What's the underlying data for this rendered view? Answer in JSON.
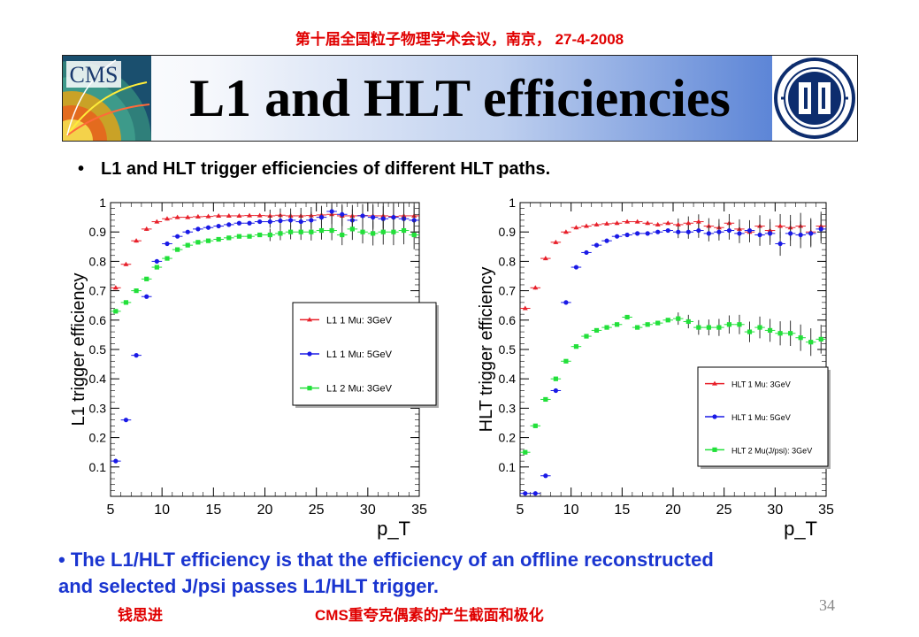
{
  "header": {
    "conference": "第十届全国粒子物理学术会议，南京， 27-4-2008"
  },
  "slide": {
    "title": "L1 and HLT efficiencies",
    "bullet1": "L1 and HLT trigger efficiencies of different HLT paths.",
    "bullet2_line1": "The L1/HLT efficiency is that the efficiency of an offline reconstructed",
    "bullet2_line2": "and selected J/psi passes L1/HLT trigger.",
    "cms_logo_text": "CMS",
    "page_number": "34"
  },
  "footer": {
    "author": "钱思进",
    "title": "CMS重夸克偶素的产生截面和极化"
  },
  "colors": {
    "red": "#e8202a",
    "blue": "#1a1ae6",
    "green": "#22e03a",
    "conference": "#e00000",
    "bullet2": "#1a35d0"
  },
  "chart_data": [
    {
      "type": "scatter",
      "ylabel": "L1 trigger efficiency",
      "xlabel": "p_T",
      "xlim": [
        5,
        35
      ],
      "ylim": [
        0,
        1
      ],
      "xticks": [
        5,
        10,
        15,
        20,
        25,
        30,
        35
      ],
      "yticks": [
        0.1,
        0.2,
        0.3,
        0.4,
        0.5,
        0.6,
        0.7,
        0.8,
        0.9,
        1
      ],
      "legend_position": "middle-right",
      "series": [
        {
          "name": "L1 1 Mu: 3GeV",
          "color": "red",
          "marker": "triangle",
          "x": [
            5.5,
            6.5,
            7.5,
            8.5,
            9.5,
            10.5,
            11.5,
            12.5,
            13.5,
            14.5,
            15.5,
            16.5,
            17.5,
            18.5,
            19.5,
            20.5,
            21.5,
            22.5,
            23.5,
            24.5,
            25.5,
            26.5,
            27.5,
            28.5,
            29.5,
            30.5,
            31.5,
            32.5,
            33.5,
            34.5
          ],
          "y": [
            0.71,
            0.79,
            0.87,
            0.91,
            0.935,
            0.945,
            0.95,
            0.95,
            0.952,
            0.953,
            0.955,
            0.955,
            0.955,
            0.956,
            0.956,
            0.955,
            0.957,
            0.955,
            0.955,
            0.956,
            0.958,
            0.96,
            0.955,
            0.955,
            0.956,
            0.955,
            0.955,
            0.953,
            0.955,
            0.955
          ]
        },
        {
          "name": "L1 1 Mu: 5GeV",
          "color": "blue",
          "marker": "circle",
          "x": [
            5.5,
            6.5,
            7.5,
            8.5,
            9.5,
            10.5,
            11.5,
            12.5,
            13.5,
            14.5,
            15.5,
            16.5,
            17.5,
            18.5,
            19.5,
            20.5,
            21.5,
            22.5,
            23.5,
            24.5,
            25.5,
            26.5,
            27.5,
            28.5,
            29.5,
            30.5,
            31.5,
            32.5,
            33.5,
            34.5
          ],
          "y": [
            0.12,
            0.26,
            0.48,
            0.68,
            0.8,
            0.86,
            0.885,
            0.9,
            0.91,
            0.915,
            0.92,
            0.925,
            0.93,
            0.93,
            0.935,
            0.935,
            0.938,
            0.94,
            0.935,
            0.94,
            0.95,
            0.97,
            0.96,
            0.94,
            0.955,
            0.95,
            0.945,
            0.95,
            0.945,
            0.94
          ]
        },
        {
          "name": "L1 2 Mu: 3GeV",
          "color": "green",
          "marker": "square",
          "x": [
            5.5,
            6.5,
            7.5,
            8.5,
            9.5,
            10.5,
            11.5,
            12.5,
            13.5,
            14.5,
            15.5,
            16.5,
            17.5,
            18.5,
            19.5,
            20.5,
            21.5,
            22.5,
            23.5,
            24.5,
            25.5,
            26.5,
            27.5,
            28.5,
            29.5,
            30.5,
            31.5,
            32.5,
            33.5,
            34.5
          ],
          "y": [
            0.63,
            0.66,
            0.7,
            0.74,
            0.78,
            0.81,
            0.84,
            0.855,
            0.865,
            0.87,
            0.875,
            0.88,
            0.885,
            0.885,
            0.89,
            0.89,
            0.895,
            0.9,
            0.9,
            0.9,
            0.905,
            0.905,
            0.89,
            0.91,
            0.9,
            0.895,
            0.9,
            0.9,
            0.905,
            0.89
          ]
        }
      ]
    },
    {
      "type": "scatter",
      "ylabel": "HLT trigger efficiency",
      "xlabel": "p_T",
      "xlim": [
        5,
        35
      ],
      "ylim": [
        0,
        1
      ],
      "xticks": [
        5,
        10,
        15,
        20,
        25,
        30,
        35
      ],
      "yticks": [
        0.1,
        0.2,
        0.3,
        0.4,
        0.5,
        0.6,
        0.7,
        0.8,
        0.9,
        1
      ],
      "legend_position": "lower-right",
      "series": [
        {
          "name": "HLT 1 Mu: 3GeV",
          "color": "red",
          "marker": "triangle",
          "x": [
            5.5,
            6.5,
            7.5,
            8.5,
            9.5,
            10.5,
            11.5,
            12.5,
            13.5,
            14.5,
            15.5,
            16.5,
            17.5,
            18.5,
            19.5,
            20.5,
            21.5,
            22.5,
            23.5,
            24.5,
            25.5,
            26.5,
            27.5,
            28.5,
            29.5,
            30.5,
            31.5,
            32.5,
            33.5,
            34.5
          ],
          "y": [
            0.64,
            0.71,
            0.81,
            0.865,
            0.9,
            0.915,
            0.92,
            0.925,
            0.928,
            0.93,
            0.935,
            0.935,
            0.93,
            0.925,
            0.93,
            0.925,
            0.93,
            0.935,
            0.92,
            0.915,
            0.93,
            0.91,
            0.9,
            0.92,
            0.905,
            0.92,
            0.915,
            0.92,
            0.9,
            0.92
          ]
        },
        {
          "name": "HLT 1 Mu: 5GeV",
          "color": "blue",
          "marker": "circle",
          "x": [
            5.5,
            6.5,
            7.5,
            8.5,
            9.5,
            10.5,
            11.5,
            12.5,
            13.5,
            14.5,
            15.5,
            16.5,
            17.5,
            18.5,
            19.5,
            20.5,
            21.5,
            22.5,
            23.5,
            24.5,
            25.5,
            26.5,
            27.5,
            28.5,
            29.5,
            30.5,
            31.5,
            32.5,
            33.5,
            34.5
          ],
          "y": [
            0.01,
            0.01,
            0.07,
            0.36,
            0.66,
            0.78,
            0.83,
            0.855,
            0.87,
            0.885,
            0.89,
            0.895,
            0.895,
            0.9,
            0.905,
            0.9,
            0.9,
            0.905,
            0.895,
            0.9,
            0.905,
            0.895,
            0.905,
            0.89,
            0.895,
            0.86,
            0.895,
            0.89,
            0.895,
            0.91
          ]
        },
        {
          "name": "HLT 2 Mu(J/psi): 3GeV",
          "color": "green",
          "marker": "square",
          "x": [
            5.5,
            6.5,
            7.5,
            8.5,
            9.5,
            10.5,
            11.5,
            12.5,
            13.5,
            14.5,
            15.5,
            16.5,
            17.5,
            18.5,
            19.5,
            20.5,
            21.5,
            22.5,
            23.5,
            24.5,
            25.5,
            26.5,
            27.5,
            28.5,
            29.5,
            30.5,
            31.5,
            32.5,
            33.5,
            34.5
          ],
          "y": [
            0.15,
            0.24,
            0.33,
            0.4,
            0.46,
            0.51,
            0.545,
            0.565,
            0.575,
            0.585,
            0.61,
            0.575,
            0.585,
            0.59,
            0.6,
            0.605,
            0.595,
            0.575,
            0.575,
            0.575,
            0.585,
            0.585,
            0.56,
            0.575,
            0.565,
            0.555,
            0.555,
            0.54,
            0.525,
            0.535
          ]
        }
      ]
    }
  ]
}
